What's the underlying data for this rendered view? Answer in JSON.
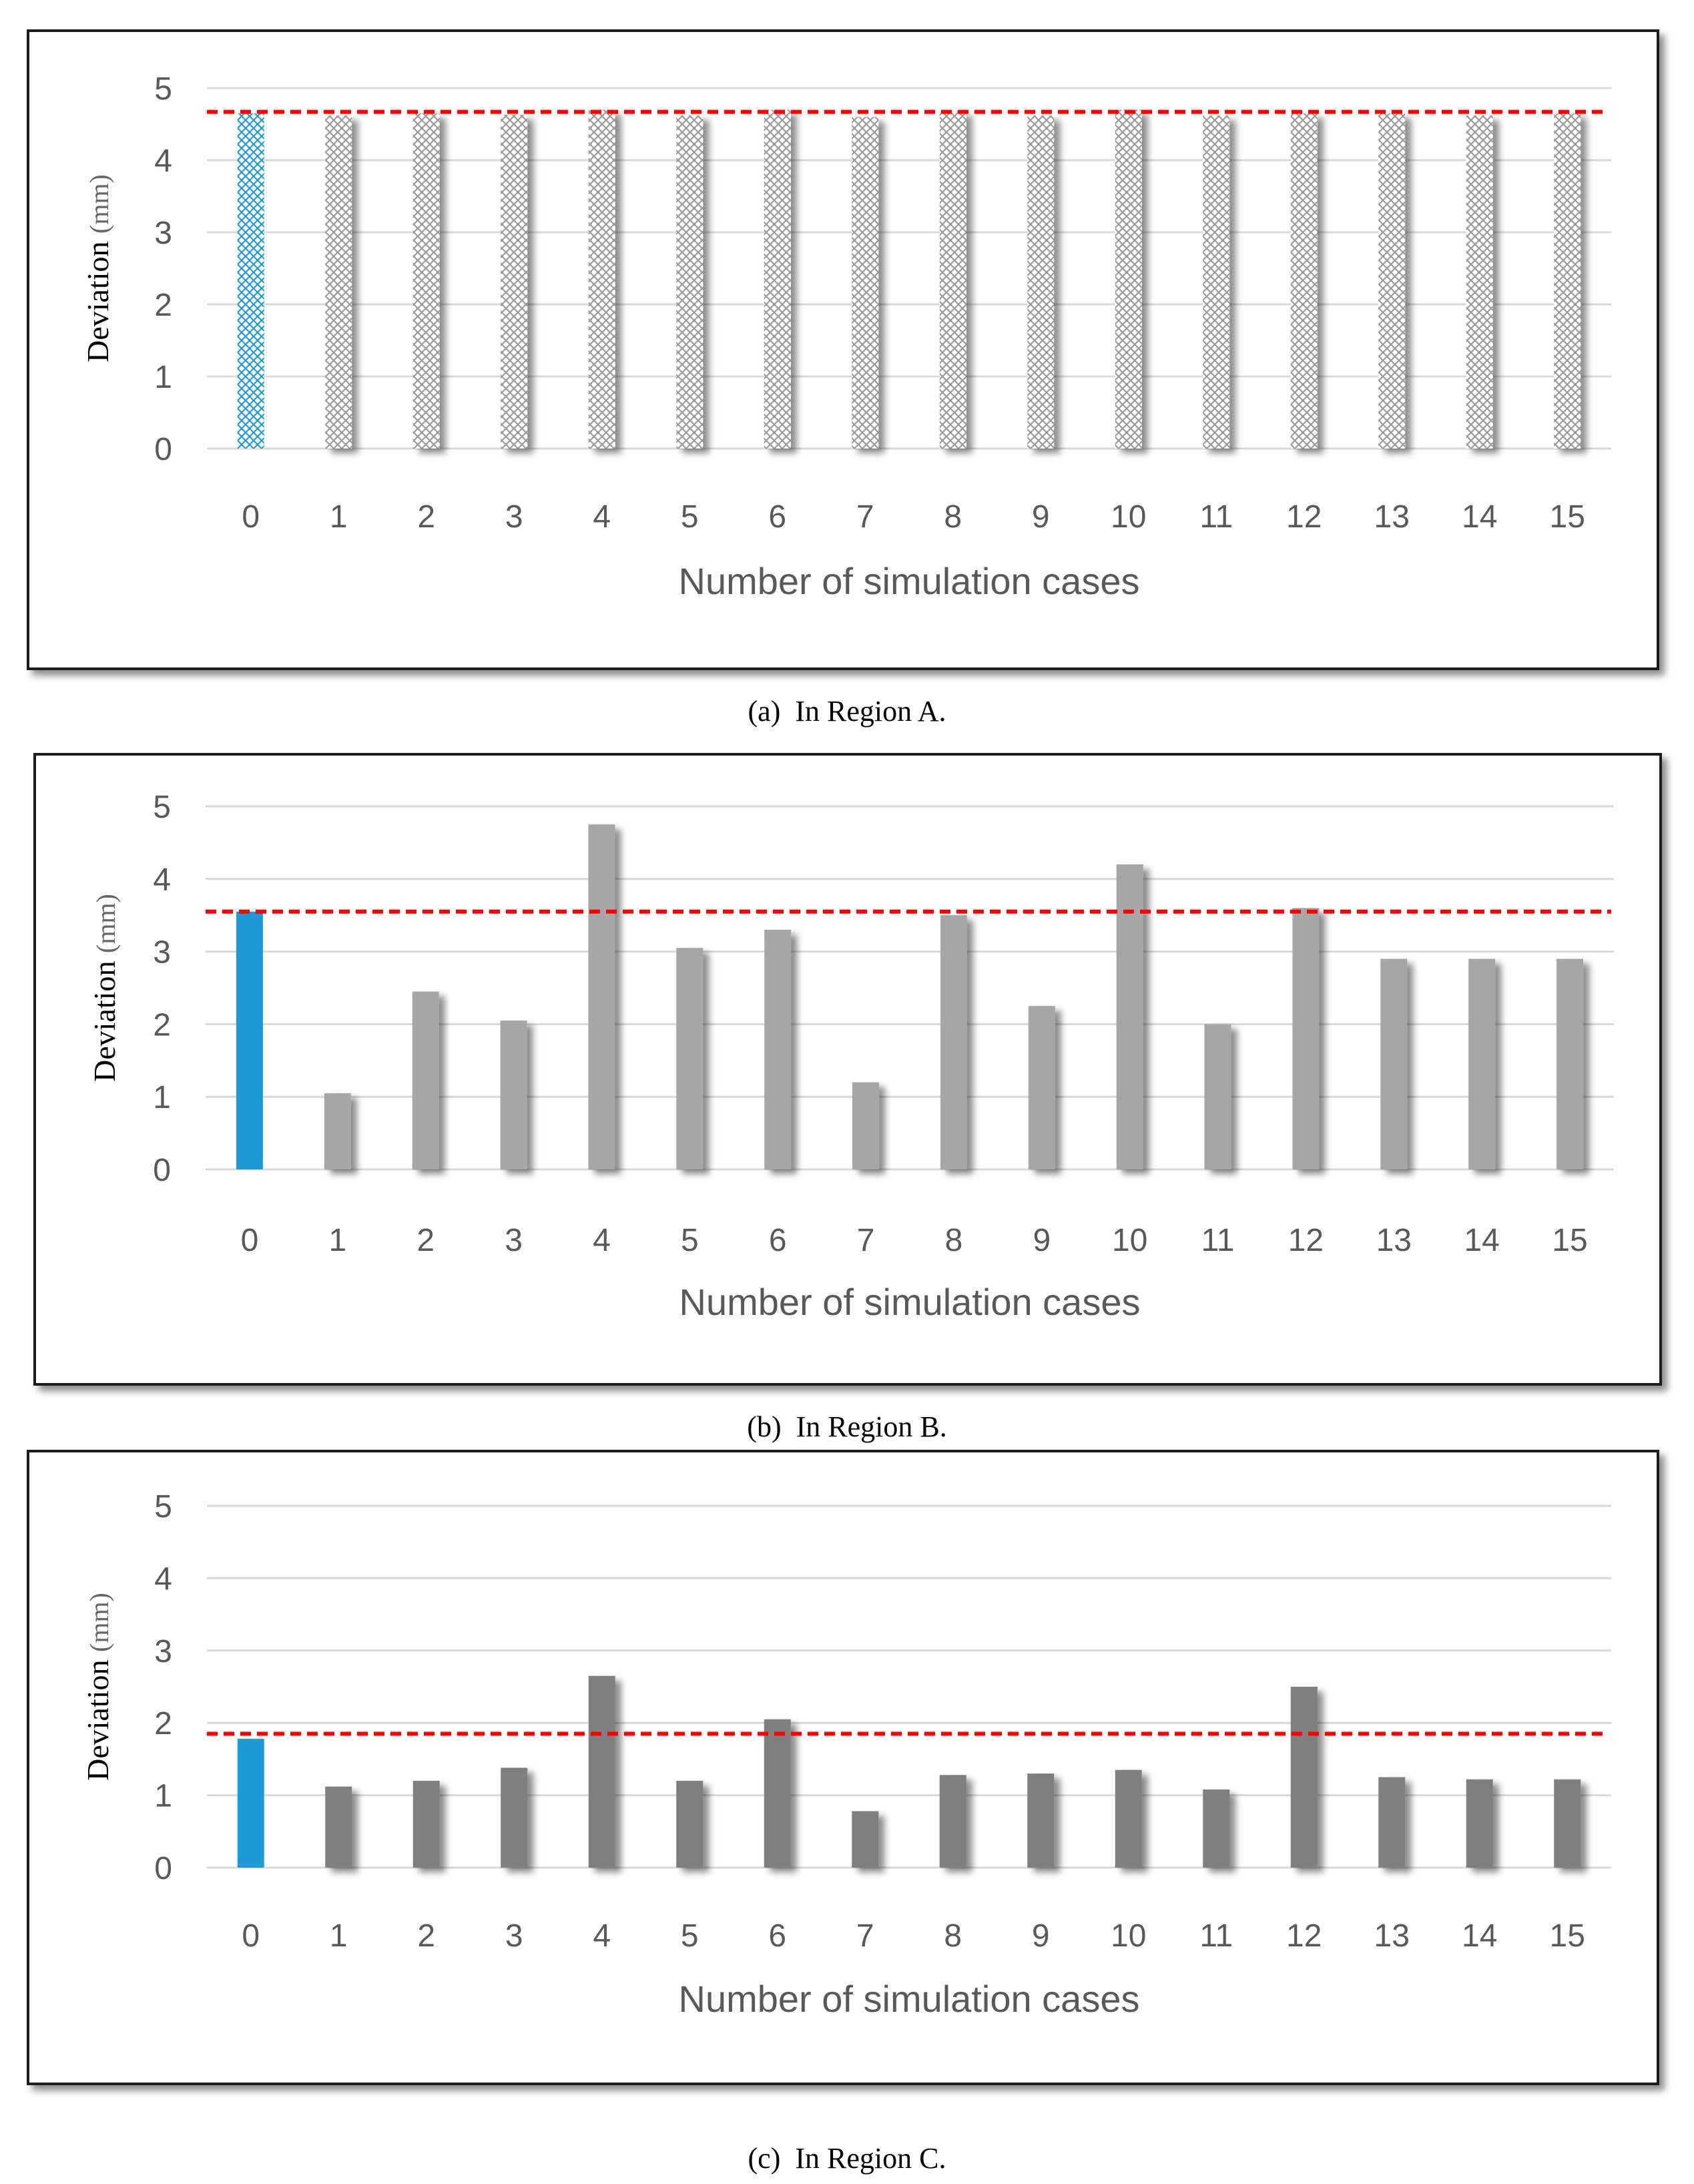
{
  "colors": {
    "highlight": "#1e9bd7",
    "bar_light": "#a6a6a6",
    "bar_dark": "#7f7f7f",
    "reference_line": "#ff0000",
    "grid": "#d9d9d9"
  },
  "chart_data": [
    {
      "type": "bar",
      "title": "",
      "caption": "(a)  In Region A.",
      "xlabel": "Number of simulation cases",
      "ylabel": "Deviation",
      "ylabel_unit": "(mm)",
      "ylim": [
        0,
        5
      ],
      "yticks": [
        0,
        1,
        2,
        3,
        4,
        5
      ],
      "grid": true,
      "categories": [
        "0",
        "1",
        "2",
        "3",
        "4",
        "5",
        "6",
        "7",
        "8",
        "9",
        "10",
        "11",
        "12",
        "13",
        "14",
        "15"
      ],
      "values": [
        4.65,
        4.62,
        4.65,
        4.63,
        4.7,
        4.62,
        4.7,
        4.6,
        4.68,
        4.62,
        4.7,
        4.62,
        4.65,
        4.65,
        4.62,
        4.65
      ],
      "highlight_index": 0,
      "bar_style": "crosshatch",
      "reference_line": 4.67
    },
    {
      "type": "bar",
      "title": "",
      "caption": "(b)  In Region B.",
      "xlabel": "Number of simulation cases",
      "ylabel": "Deviation",
      "ylabel_unit": "(mm)",
      "ylim": [
        0,
        5
      ],
      "yticks": [
        0,
        1,
        2,
        3,
        4,
        5
      ],
      "grid": true,
      "categories": [
        "0",
        "1",
        "2",
        "3",
        "4",
        "5",
        "6",
        "7",
        "8",
        "9",
        "10",
        "11",
        "12",
        "13",
        "14",
        "15"
      ],
      "values": [
        3.55,
        1.05,
        2.45,
        2.05,
        4.75,
        3.05,
        3.3,
        1.2,
        3.5,
        2.25,
        4.2,
        2.0,
        3.6,
        2.9,
        2.9,
        2.9
      ],
      "highlight_index": 0,
      "bar_style": "light",
      "reference_line": 3.55
    },
    {
      "type": "bar",
      "title": "",
      "caption": "(c)  In Region C.",
      "xlabel": "Number of simulation cases",
      "ylabel": "Deviation",
      "ylabel_unit": "(mm)",
      "ylim": [
        0,
        5
      ],
      "yticks": [
        0,
        1,
        2,
        3,
        4,
        5
      ],
      "grid": true,
      "categories": [
        "0",
        "1",
        "2",
        "3",
        "4",
        "5",
        "6",
        "7",
        "8",
        "9",
        "10",
        "11",
        "12",
        "13",
        "14",
        "15"
      ],
      "values": [
        1.78,
        1.12,
        1.2,
        1.38,
        2.65,
        1.2,
        2.05,
        0.78,
        1.28,
        1.3,
        1.35,
        1.08,
        2.5,
        1.25,
        1.22,
        1.22
      ],
      "highlight_index": 0,
      "bar_style": "dark",
      "reference_line": 1.85
    }
  ]
}
